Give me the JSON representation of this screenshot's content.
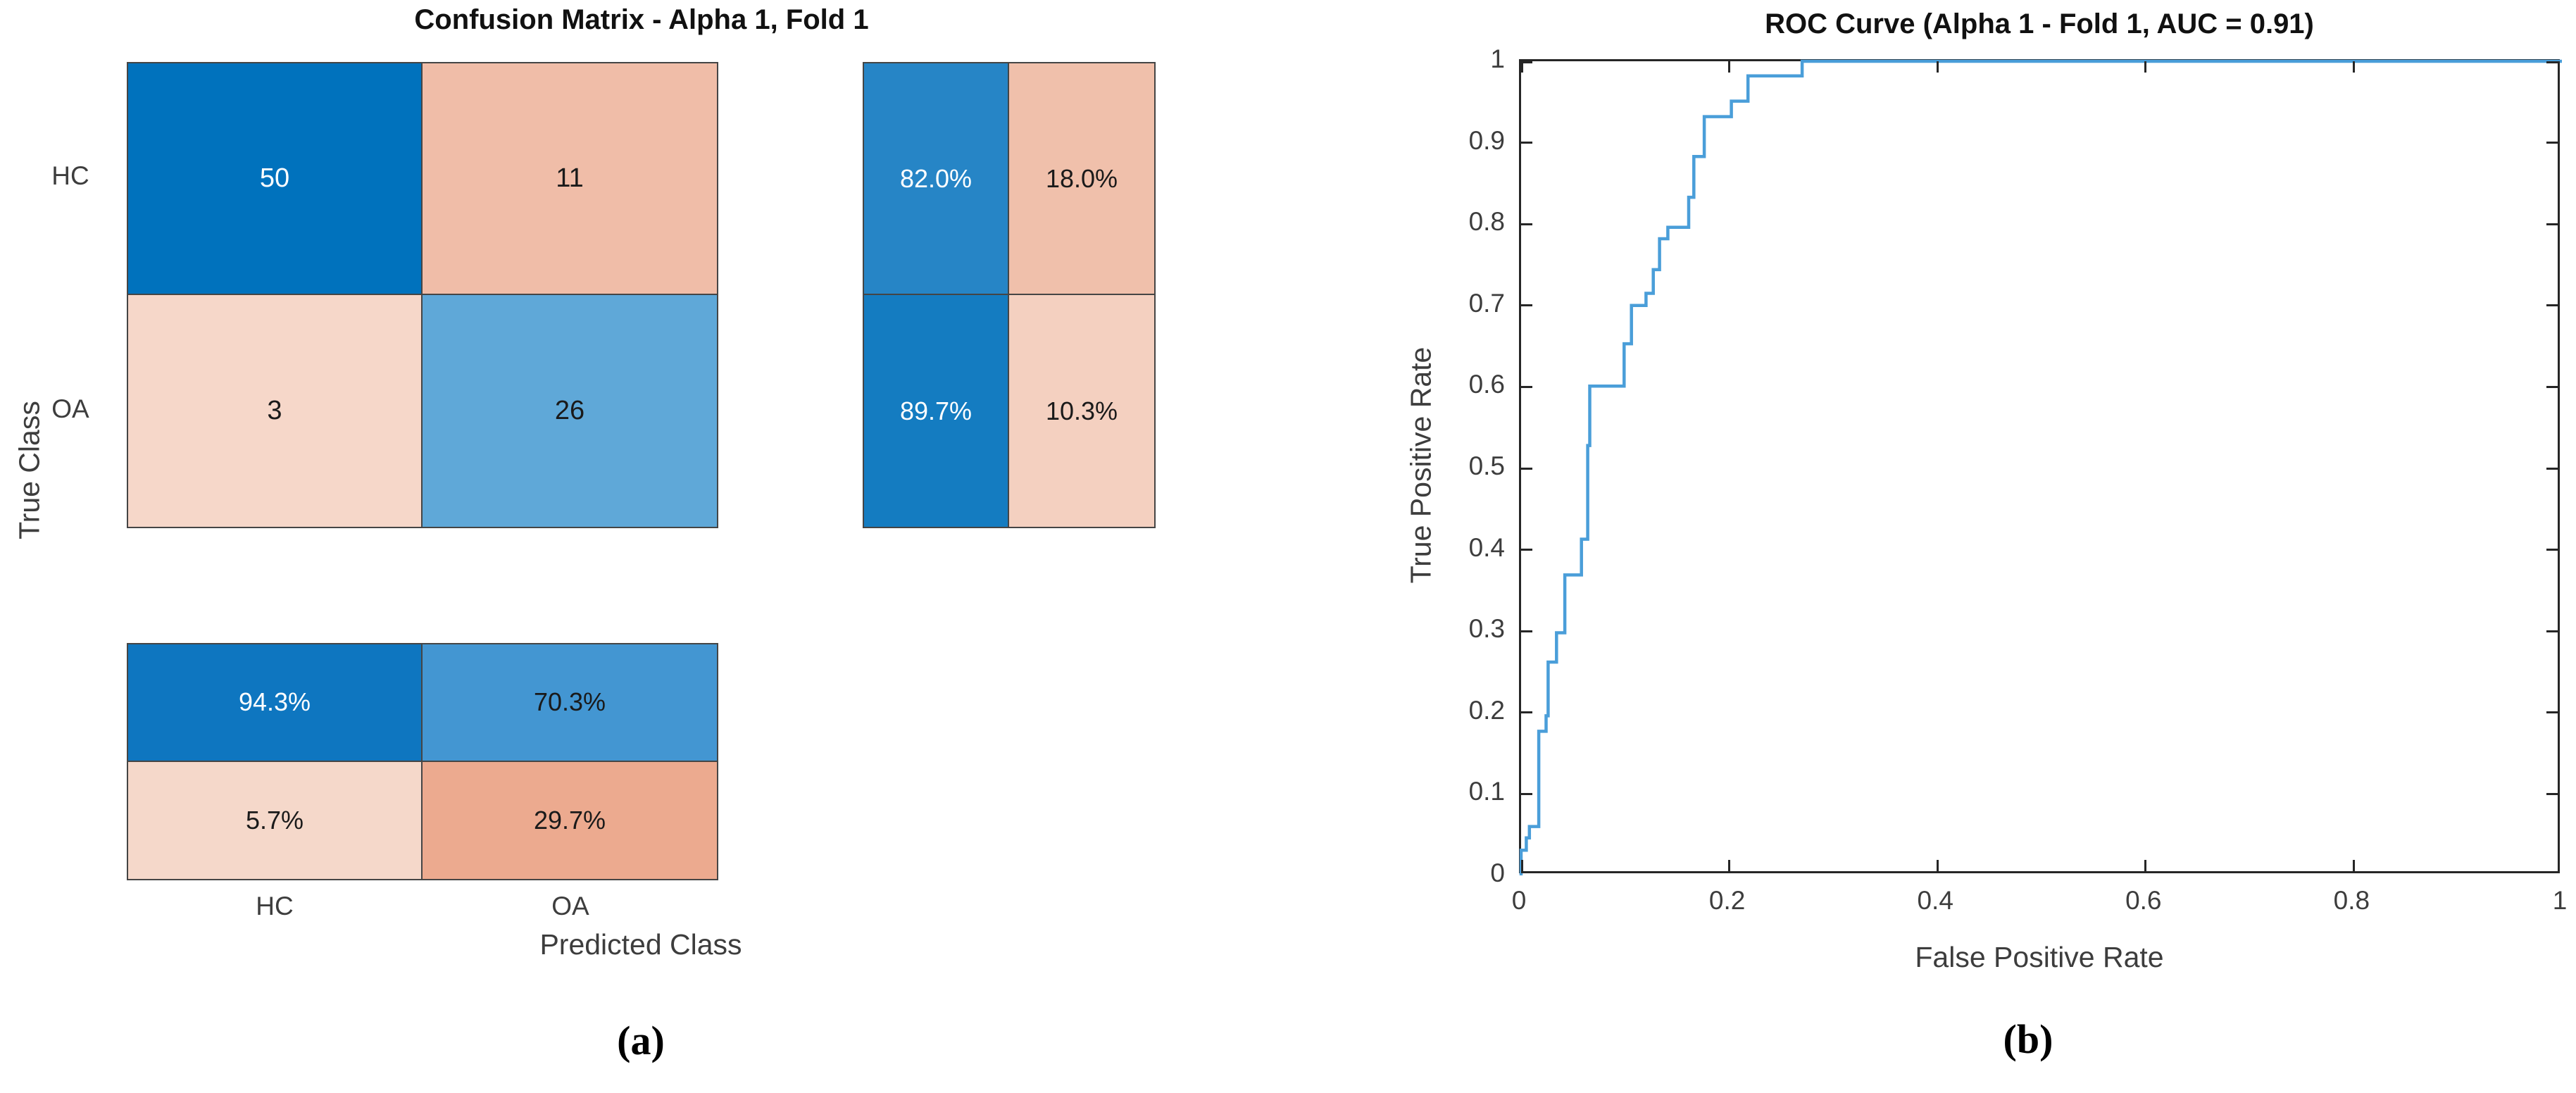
{
  "panel_a": {
    "title": "Confusion Matrix - Alpha 1, Fold 1",
    "y_axis_label": "True Class",
    "x_axis_label": "Predicted Class",
    "row_labels": [
      "HC",
      "OA"
    ],
    "col_labels": [
      "HC",
      "OA"
    ],
    "caption": "(a)",
    "main_matrix_cells": [
      {
        "value": "50",
        "bg": "#0072BD",
        "fg": "#ffffff"
      },
      {
        "value": "11",
        "bg": "#F0BDA8",
        "fg": "#1a1a1a"
      },
      {
        "value": "3",
        "bg": "#F6D7C9",
        "fg": "#1a1a1a"
      },
      {
        "value": "26",
        "bg": "#5FA8D8",
        "fg": "#1a1a1a"
      }
    ],
    "row_summary_cells": [
      {
        "value": "82.0%",
        "bg": "#2685C6",
        "fg": "#ffffff"
      },
      {
        "value": "18.0%",
        "bg": "#F0C0AB",
        "fg": "#1a1a1a"
      },
      {
        "value": "89.7%",
        "bg": "#147CC1",
        "fg": "#ffffff"
      },
      {
        "value": "10.3%",
        "bg": "#F4D0C0",
        "fg": "#1a1a1a"
      }
    ],
    "column_summary_cells": [
      {
        "value": "94.3%",
        "bg": "#0E76C0",
        "fg": "#ffffff"
      },
      {
        "value": "70.3%",
        "bg": "#4396D2",
        "fg": "#1a1a1a"
      },
      {
        "value": "5.7%",
        "bg": "#F5D8CA",
        "fg": "#1a1a1a"
      },
      {
        "value": "29.7%",
        "bg": "#ECAA8F",
        "fg": "#1a1a1a"
      }
    ]
  },
  "panel_b": {
    "title": "ROC Curve (Alpha 1 - Fold 1, AUC = 0.91)",
    "x_axis_label": "False Positive Rate",
    "y_axis_label": "True Positive Rate",
    "caption": "(b)",
    "x_tick_labels": [
      "0",
      "0.2",
      "0.4",
      "0.6",
      "0.8",
      "1"
    ],
    "y_tick_labels": [
      "0",
      "0.1",
      "0.2",
      "0.3",
      "0.4",
      "0.5",
      "0.6",
      "0.7",
      "0.8",
      "0.9",
      "1"
    ],
    "line_color": "#4A9ED9",
    "axis_color": "#262626"
  },
  "chart_data": [
    {
      "type": "heatmap",
      "title": "Confusion Matrix - Alpha 1, Fold 1",
      "xlabel": "Predicted Class",
      "ylabel": "True Class",
      "row_labels": [
        "HC",
        "OA"
      ],
      "col_labels": [
        "HC",
        "OA"
      ],
      "values": [
        [
          50,
          11
        ],
        [
          3,
          26
        ]
      ],
      "row_normalized_pct": [
        [
          82.0,
          18.0
        ],
        [
          89.7,
          10.3
        ]
      ],
      "col_normalized_pct": [
        [
          94.3,
          70.3
        ],
        [
          5.7,
          29.7
        ]
      ]
    },
    {
      "type": "line",
      "title": "ROC Curve (Alpha 1 - Fold 1, AUC = 0.91)",
      "xlabel": "False Positive Rate",
      "ylabel": "True Positive Rate",
      "xlim": [
        0,
        1
      ],
      "ylim": [
        0,
        1
      ],
      "x_ticks": [
        0,
        0.2,
        0.4,
        0.6,
        0.8,
        1
      ],
      "y_ticks": [
        0,
        0.1,
        0.2,
        0.3,
        0.4,
        0.5,
        0.6,
        0.7,
        0.8,
        0.9,
        1
      ],
      "auc": 0.91,
      "grid": false,
      "legend": "none",
      "roc_points": [
        [
          0.0,
          0.0
        ],
        [
          0.0,
          0.031
        ],
        [
          0.005,
          0.031
        ],
        [
          0.005,
          0.046
        ],
        [
          0.008,
          0.046
        ],
        [
          0.008,
          0.06
        ],
        [
          0.017,
          0.06
        ],
        [
          0.017,
          0.177
        ],
        [
          0.024,
          0.177
        ],
        [
          0.024,
          0.196
        ],
        [
          0.026,
          0.196
        ],
        [
          0.026,
          0.262
        ],
        [
          0.034,
          0.262
        ],
        [
          0.034,
          0.298
        ],
        [
          0.042,
          0.298
        ],
        [
          0.042,
          0.369
        ],
        [
          0.058,
          0.369
        ],
        [
          0.058,
          0.413
        ],
        [
          0.064,
          0.413
        ],
        [
          0.064,
          0.528
        ],
        [
          0.066,
          0.528
        ],
        [
          0.066,
          0.601
        ],
        [
          0.099,
          0.601
        ],
        [
          0.099,
          0.653
        ],
        [
          0.106,
          0.653
        ],
        [
          0.106,
          0.7
        ],
        [
          0.12,
          0.7
        ],
        [
          0.12,
          0.715
        ],
        [
          0.127,
          0.715
        ],
        [
          0.127,
          0.744
        ],
        [
          0.133,
          0.744
        ],
        [
          0.133,
          0.782
        ],
        [
          0.141,
          0.782
        ],
        [
          0.141,
          0.796
        ],
        [
          0.161,
          0.796
        ],
        [
          0.161,
          0.833
        ],
        [
          0.166,
          0.833
        ],
        [
          0.166,
          0.883
        ],
        [
          0.176,
          0.883
        ],
        [
          0.176,
          0.932
        ],
        [
          0.202,
          0.932
        ],
        [
          0.202,
          0.951
        ],
        [
          0.218,
          0.951
        ],
        [
          0.218,
          0.982
        ],
        [
          0.27,
          0.982
        ],
        [
          0.27,
          1.0
        ],
        [
          1.0,
          1.0
        ]
      ]
    }
  ]
}
